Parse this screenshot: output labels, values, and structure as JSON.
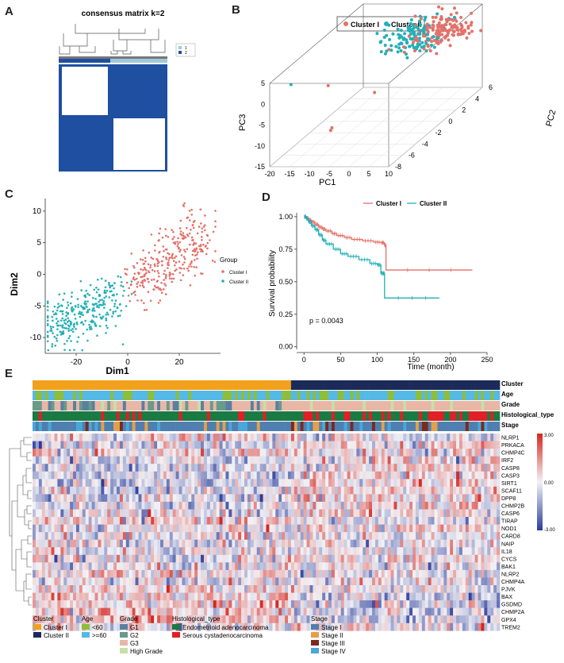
{
  "panels": {
    "A": "A",
    "B": "B",
    "C": "C",
    "D": "D",
    "E": "E"
  },
  "panel_a": {
    "title": "consensus matrix k=2",
    "legend": [
      "1",
      "2"
    ],
    "colors": {
      "cluster1": "#1f4fa3",
      "cluster2": "#9ec9dd",
      "matrix": "#1e4fa0"
    }
  },
  "chart_data": [
    {
      "panel": "B",
      "type": "scatter",
      "title": "",
      "legend": [
        "Cluster I",
        "Cluster II"
      ],
      "xlabel": "PC1",
      "ylabel": "PC2",
      "zlabel": "PC3",
      "x_ticks": [
        "-20",
        "-15",
        "-10",
        "-5",
        "0",
        "5",
        "10"
      ],
      "y_ticks": [
        "-8",
        "-6",
        "-4",
        "-2",
        "0",
        "2",
        "4",
        "6"
      ],
      "z_ticks": [
        "-15",
        "-10",
        "-5",
        "0",
        "5"
      ],
      "xlim": [
        -20,
        10
      ],
      "ylim": [
        -8,
        6
      ],
      "zlim": [
        -15,
        5
      ],
      "colors": {
        "Cluster I": "#e4716a",
        "Cluster II": "#22b0b6"
      }
    },
    {
      "panel": "C",
      "type": "scatter",
      "xlabel": "Dim1",
      "ylabel": "Dim2",
      "x_ticks": [
        "-20",
        "0",
        "20"
      ],
      "y_ticks": [
        "-10",
        "-5",
        "0",
        "5",
        "10"
      ],
      "xlim": [
        -32,
        36
      ],
      "ylim": [
        -12.5,
        12
      ],
      "legend_title": "Group",
      "legend": [
        "Cluster I",
        "Cluster II"
      ],
      "colors": {
        "Cluster I": "#e4716a",
        "Cluster II": "#22b0b6"
      }
    },
    {
      "panel": "D",
      "type": "line",
      "xlabel": "Time (month)",
      "ylabel": "Survival probability",
      "x_ticks": [
        "0",
        "50",
        "100",
        "150",
        "200",
        "250"
      ],
      "y_ticks": [
        "0.00",
        "0.25",
        "0.50",
        "0.75",
        "1.00"
      ],
      "xlim": [
        -10,
        250
      ],
      "ylim": [
        -0.02,
        1.03
      ],
      "pvalue": "p = 0.0043",
      "legend": [
        "Cluster I",
        "Cluster II"
      ],
      "series": [
        {
          "name": "Cluster I",
          "color": "#e4716a",
          "x": [
            0,
            3,
            6,
            10,
            15,
            20,
            25,
            30,
            38,
            45,
            55,
            65,
            80,
            95,
            105,
            110,
            112,
            230
          ],
          "y": [
            1.0,
            0.99,
            0.975,
            0.96,
            0.94,
            0.92,
            0.905,
            0.89,
            0.87,
            0.855,
            0.84,
            0.825,
            0.815,
            0.805,
            0.8,
            0.78,
            0.59,
            0.59
          ]
        },
        {
          "name": "Cluster II",
          "color": "#22b0b6",
          "x": [
            0,
            3,
            6,
            10,
            15,
            20,
            25,
            30,
            40,
            50,
            60,
            75,
            90,
            100,
            105,
            108,
            110,
            185
          ],
          "y": [
            1.0,
            0.985,
            0.96,
            0.93,
            0.9,
            0.86,
            0.82,
            0.79,
            0.75,
            0.715,
            0.695,
            0.67,
            0.64,
            0.63,
            0.565,
            0.565,
            0.375,
            0.375
          ]
        }
      ]
    },
    {
      "panel": "E",
      "type": "heatmap",
      "rows": [
        "NLRP1",
        "PRKACA",
        "CHMP4C",
        "IRF2",
        "CASP8",
        "CASP3",
        "SIRT1",
        "SCAF11",
        "DPP8",
        "CHMP2B",
        "CASP6",
        "TIRAP",
        "NOD1",
        "CARD8",
        "NAIP",
        "IL18",
        "CYCS",
        "BAK1",
        "NLRP2",
        "CHMP4A",
        "PJVK",
        "BAX",
        "GSDMD",
        "CHMP2A",
        "GPX4",
        "TREM2"
      ],
      "annotation_tracks": [
        "Cluster",
        "Age",
        "Grade",
        "Histological_type",
        "Stage"
      ],
      "colorbar": [
        "3.00",
        "0.00",
        "-3.00"
      ],
      "colors": {
        "high": "#d7261e",
        "mid": "#f2f2f6",
        "low": "#2b3d9c"
      }
    }
  ],
  "legend_e": {
    "cluster": {
      "title": "Cluster",
      "items": [
        {
          "label": "Cluster I",
          "color": "#f2a11d"
        },
        {
          "label": "Cluster II",
          "color": "#1b2a59"
        }
      ]
    },
    "age": {
      "title": "Age",
      "items": [
        {
          "label": "<60",
          "color": "#8dbd3c"
        },
        {
          "label": ">=60",
          "color": "#55b9e6"
        }
      ]
    },
    "grade": {
      "title": "Grade",
      "items": [
        {
          "label": "G1",
          "color": "#5b7fa0"
        },
        {
          "label": "G2",
          "color": "#6a9a8a"
        },
        {
          "label": "G3",
          "color": "#e8b7a5"
        },
        {
          "label": "High Grade",
          "color": "#c8dea6"
        }
      ]
    },
    "hist": {
      "title": "Histological_type",
      "items": [
        {
          "label": "Endometrioid adenocarcinoma",
          "color": "#1a7a43"
        },
        {
          "label": "Serous cystadenocarcinoma",
          "color": "#e01f26"
        }
      ]
    },
    "stage": {
      "title": "Stage",
      "items": [
        {
          "label": "Stage I",
          "color": "#4f7fb0"
        },
        {
          "label": "Stage II",
          "color": "#e3a04a"
        },
        {
          "label": "Stage III",
          "color": "#7a2a20"
        },
        {
          "label": "Stage IV",
          "color": "#4aa7d8"
        }
      ]
    }
  }
}
